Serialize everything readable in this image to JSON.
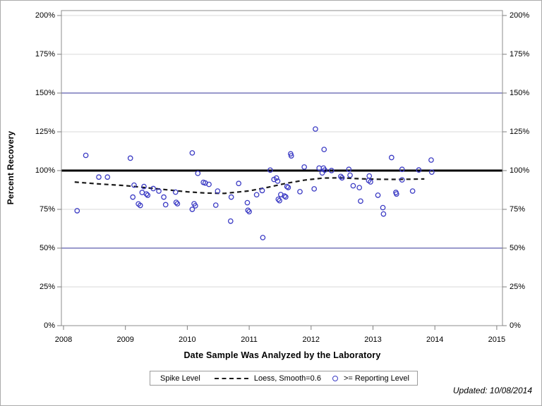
{
  "y_axis": {
    "title": "Percent Recovery",
    "tick_suffix": "%"
  },
  "x_axis": {
    "title": "Date Sample Was Analyzed by the Laboratory"
  },
  "legend": {
    "title": "Spike Level",
    "items": [
      {
        "symbol": "dashed-line",
        "label": "Loess, Smooth=0.6"
      },
      {
        "symbol": "open-circle",
        "label": ">= Reporting Level"
      }
    ]
  },
  "footer": {
    "updated": "Updated: 10/08/2014"
  },
  "colors": {
    "marker": "#3b3bc4",
    "loess_line": "#1a1a1a",
    "spike_line": "#000000",
    "navy_reference": "#333399",
    "gridline": "#d9d9d9",
    "frame": "#8c8c8c",
    "tick": "#7f7f7f",
    "text": "#000000",
    "legend_border": "#9c9c9c"
  },
  "chart_data": {
    "type": "scatter",
    "title": "",
    "xlabel": "Date Sample Was Analyzed by the Laboratory",
    "ylabel": "Percent Recovery",
    "xlim": [
      2007.97,
      2015.1
    ],
    "ylim": [
      0,
      200
    ],
    "x_ticks": [
      2008,
      2009,
      2010,
      2011,
      2012,
      2013,
      2014,
      2015
    ],
    "y_ticks": [
      0,
      25,
      50,
      75,
      100,
      125,
      150,
      175,
      200
    ],
    "grid": "horizontal-only",
    "gridlines_pct": [
      25,
      75,
      125,
      175,
      200
    ],
    "reference_lines": [
      {
        "y": 100,
        "label": "Spike Level",
        "style": "solid",
        "width": 3,
        "color": "#000000"
      },
      {
        "y": 50,
        "label": "",
        "style": "solid",
        "width": 1,
        "color": "#333399"
      },
      {
        "y": 150,
        "label": "",
        "style": "solid",
        "width": 1,
        "color": "#333399"
      }
    ],
    "legend_position": "bottom-center",
    "series": [
      {
        "name": ">= Reporting Level",
        "type": "scatter-open-circle",
        "points": [
          [
            2008.22,
            74.1
          ],
          [
            2008.36,
            109.8
          ],
          [
            2008.57,
            95.8
          ],
          [
            2008.71,
            95.8
          ],
          [
            2009.08,
            108.0
          ],
          [
            2009.12,
            82.9
          ],
          [
            2009.14,
            90.6
          ],
          [
            2009.21,
            78.5
          ],
          [
            2009.24,
            77.5
          ],
          [
            2009.27,
            85.9
          ],
          [
            2009.3,
            89.7
          ],
          [
            2009.34,
            84.9
          ],
          [
            2009.36,
            84.1
          ],
          [
            2009.45,
            88.4
          ],
          [
            2009.54,
            86.8
          ],
          [
            2009.62,
            82.9
          ],
          [
            2009.65,
            78.0
          ],
          [
            2009.81,
            86.1
          ],
          [
            2009.82,
            79.5
          ],
          [
            2009.84,
            78.6
          ],
          [
            2010.08,
            111.4
          ],
          [
            2010.08,
            75.0
          ],
          [
            2010.11,
            78.6
          ],
          [
            2010.13,
            77.3
          ],
          [
            2010.17,
            98.2
          ],
          [
            2010.26,
            92.4
          ],
          [
            2010.29,
            92.0
          ],
          [
            2010.35,
            91.1
          ],
          [
            2010.46,
            77.7
          ],
          [
            2010.49,
            86.8
          ],
          [
            2010.7,
            67.4
          ],
          [
            2010.71,
            82.9
          ],
          [
            2010.83,
            91.7
          ],
          [
            2010.97,
            79.3
          ],
          [
            2010.98,
            74.4
          ],
          [
            2011.0,
            73.5
          ],
          [
            2011.12,
            84.4
          ],
          [
            2011.21,
            87.1
          ],
          [
            2011.22,
            56.8
          ],
          [
            2011.34,
            100.3
          ],
          [
            2011.4,
            94.3
          ],
          [
            2011.44,
            95.2
          ],
          [
            2011.46,
            93.2
          ],
          [
            2011.47,
            81.5
          ],
          [
            2011.49,
            80.6
          ],
          [
            2011.51,
            84.5
          ],
          [
            2011.57,
            83.6
          ],
          [
            2011.59,
            83.0
          ],
          [
            2011.61,
            89.7
          ],
          [
            2011.63,
            89.1
          ],
          [
            2011.67,
            110.8
          ],
          [
            2011.68,
            109.5
          ],
          [
            2011.82,
            86.4
          ],
          [
            2011.89,
            102.3
          ],
          [
            2012.05,
            88.2
          ],
          [
            2012.07,
            126.8
          ],
          [
            2012.13,
            101.6
          ],
          [
            2012.18,
            98.5
          ],
          [
            2012.2,
            101.6
          ],
          [
            2012.21,
            113.6
          ],
          [
            2012.22,
            100.3
          ],
          [
            2012.33,
            100.0
          ],
          [
            2012.48,
            96.2
          ],
          [
            2012.5,
            95.3
          ],
          [
            2012.61,
            100.8
          ],
          [
            2012.63,
            97.0
          ],
          [
            2012.68,
            90.2
          ],
          [
            2012.78,
            89.0
          ],
          [
            2012.8,
            80.3
          ],
          [
            2012.93,
            93.6
          ],
          [
            2012.94,
            96.5
          ],
          [
            2012.96,
            92.7
          ],
          [
            2013.08,
            84.1
          ],
          [
            2013.16,
            76.1
          ],
          [
            2013.17,
            72.0
          ],
          [
            2013.3,
            108.4
          ],
          [
            2013.37,
            85.9
          ],
          [
            2013.38,
            84.9
          ],
          [
            2013.47,
            100.8
          ],
          [
            2013.47,
            94.0
          ],
          [
            2013.64,
            86.8
          ],
          [
            2013.74,
            100.4
          ],
          [
            2013.94,
            106.8
          ],
          [
            2013.95,
            99.0
          ]
        ]
      },
      {
        "name": "Loess, Smooth=0.6",
        "type": "line-dashed",
        "points": [
          [
            2008.18,
            92.6
          ],
          [
            2008.6,
            91.3
          ],
          [
            2009.0,
            90.3
          ],
          [
            2009.5,
            88.3
          ],
          [
            2010.0,
            86.3
          ],
          [
            2010.3,
            85.5
          ],
          [
            2010.6,
            85.3
          ],
          [
            2011.0,
            86.9
          ],
          [
            2011.3,
            89.2
          ],
          [
            2011.6,
            91.8
          ],
          [
            2011.9,
            93.9
          ],
          [
            2012.2,
            95.2
          ],
          [
            2012.5,
            95.3
          ],
          [
            2012.8,
            94.7
          ],
          [
            2013.1,
            94.4
          ],
          [
            2013.4,
            94.3
          ],
          [
            2013.83,
            94.6
          ]
        ]
      }
    ]
  }
}
